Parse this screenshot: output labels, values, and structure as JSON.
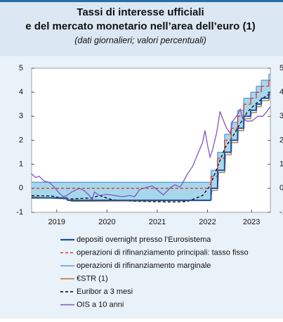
{
  "chart_data": {
    "type": "line",
    "title": [
      "Tassi di interesse ufficiali",
      "e del mercato monetario nell’area dell’euro (1)"
    ],
    "subtitle": "(dati giornalieri; valori percentuali)",
    "xlim": [
      2019.0,
      2023.75
    ],
    "ylim": [
      -1,
      5
    ],
    "yticks": [
      -1,
      0,
      1,
      2,
      3,
      4,
      5
    ],
    "xticks": [
      {
        "value": 2019.5,
        "label": "2019"
      },
      {
        "value": 2020.5,
        "label": "2020"
      },
      {
        "value": 2021.5,
        "label": "2021"
      },
      {
        "value": 2022.5,
        "label": "2022"
      },
      {
        "value": 2023.375,
        "label": "2023"
      }
    ],
    "grid": false,
    "corridor_color": "#a6d8ec",
    "series": [
      {
        "name": "depositi overnight presso l’Eurosistema",
        "color": "#1f4fa0",
        "style": "solid",
        "step": true,
        "x": [
          2019.0,
          2019.71,
          2022.57,
          2022.7,
          2022.84,
          2022.97,
          2023.1,
          2023.22,
          2023.36,
          2023.47,
          2023.57,
          2023.72
        ],
        "values": [
          -0.4,
          -0.5,
          0,
          0.75,
          1.5,
          2,
          2.5,
          3,
          3.25,
          3.5,
          3.75,
          4
        ]
      },
      {
        "name": "operazioni di rifinanziamento principali: tasso fisso",
        "color": "#e03030",
        "style": "dashed",
        "step": true,
        "x": [
          2019.0,
          2019.71,
          2022.57,
          2022.7,
          2022.84,
          2022.97,
          2023.1,
          2023.22,
          2023.36,
          2023.47,
          2023.57,
          2023.72
        ],
        "values": [
          0,
          0,
          0.5,
          1.25,
          2,
          2.5,
          3,
          3.5,
          3.75,
          4,
          4.25,
          4.5
        ]
      },
      {
        "name": "operazioni di rifinanziamento marginale",
        "color": "#5b9bd5",
        "style": "solid",
        "step": true,
        "x": [
          2019.0,
          2019.71,
          2022.57,
          2022.7,
          2022.84,
          2022.97,
          2023.1,
          2023.22,
          2023.36,
          2023.47,
          2023.57,
          2023.72
        ],
        "values": [
          0.25,
          0.25,
          0.75,
          1.5,
          2.25,
          2.75,
          3.25,
          3.75,
          4,
          4.25,
          4.5,
          4.75
        ]
      },
      {
        "name": "€STR (1)",
        "color": "#a0744a",
        "style": "solid",
        "step": false,
        "x": [
          2019.0,
          2019.7,
          2019.8,
          2022.56,
          2022.59,
          2022.7,
          2022.72,
          2022.84,
          2022.86,
          2022.97,
          2022.98,
          2023.1,
          2023.11,
          2023.22,
          2023.23,
          2023.36,
          2023.37,
          2023.47,
          2023.48,
          2023.57,
          2023.58,
          2023.72,
          2023.73,
          2023.75
        ],
        "values": [
          -0.36,
          -0.45,
          -0.54,
          -0.51,
          -0.09,
          -0.08,
          0.66,
          0.66,
          1.4,
          1.4,
          1.9,
          1.9,
          2.4,
          2.4,
          2.9,
          2.9,
          3.15,
          3.15,
          3.4,
          3.4,
          3.65,
          3.65,
          3.9,
          3.9
        ]
      },
      {
        "name": "Euribor a 3 mesi",
        "color": "#000000",
        "style": "dashed",
        "step": false,
        "x": [
          2019.0,
          2019.4,
          2019.7,
          2020.2,
          2020.35,
          2020.6,
          2021.0,
          2021.8,
          2022.1,
          2022.4,
          2022.55,
          2022.7,
          2022.85,
          2023.0,
          2023.15,
          2023.3,
          2023.45,
          2023.6,
          2023.75
        ],
        "values": [
          -0.31,
          -0.32,
          -0.45,
          -0.4,
          -0.3,
          -0.48,
          -0.54,
          -0.57,
          -0.55,
          -0.3,
          0.1,
          0.9,
          1.7,
          2.15,
          2.7,
          3.2,
          3.5,
          3.75,
          3.95
        ]
      },
      {
        "name": "OIS a 10 anni",
        "color": "#7e57c2",
        "style": "solid",
        "step": false,
        "x": [
          2019.0,
          2019.08,
          2019.15,
          2019.25,
          2019.35,
          2019.45,
          2019.55,
          2019.63,
          2019.7,
          2019.8,
          2019.95,
          2020.05,
          2020.15,
          2020.2,
          2020.25,
          2020.35,
          2020.5,
          2020.65,
          2020.8,
          2020.95,
          2021.05,
          2021.15,
          2021.3,
          2021.4,
          2021.55,
          2021.62,
          2021.75,
          2021.85,
          2021.95,
          2022.0,
          2022.1,
          2022.2,
          2022.3,
          2022.4,
          2022.45,
          2022.5,
          2022.55,
          2022.6,
          2022.68,
          2022.75,
          2022.8,
          2022.88,
          2022.95,
          2023.0,
          2023.08,
          2023.15,
          2023.2,
          2023.28,
          2023.38,
          2023.5,
          2023.6,
          2023.68,
          2023.75
        ],
        "values": [
          0.6,
          0.45,
          0.5,
          0.3,
          0.25,
          0.05,
          -0.2,
          -0.35,
          -0.3,
          -0.15,
          0.0,
          -0.1,
          -0.3,
          -0.5,
          -0.15,
          -0.3,
          -0.25,
          -0.3,
          -0.35,
          -0.3,
          -0.35,
          -0.05,
          0.05,
          0.1,
          -0.15,
          -0.28,
          0.0,
          0.15,
          0.05,
          0.2,
          0.6,
          0.9,
          1.4,
          1.9,
          2.4,
          1.8,
          1.3,
          1.6,
          2.3,
          3.2,
          2.9,
          2.5,
          2.3,
          2.8,
          3.0,
          3.3,
          2.9,
          2.8,
          2.8,
          3.0,
          3.0,
          3.2,
          3.4
        ]
      }
    ]
  }
}
